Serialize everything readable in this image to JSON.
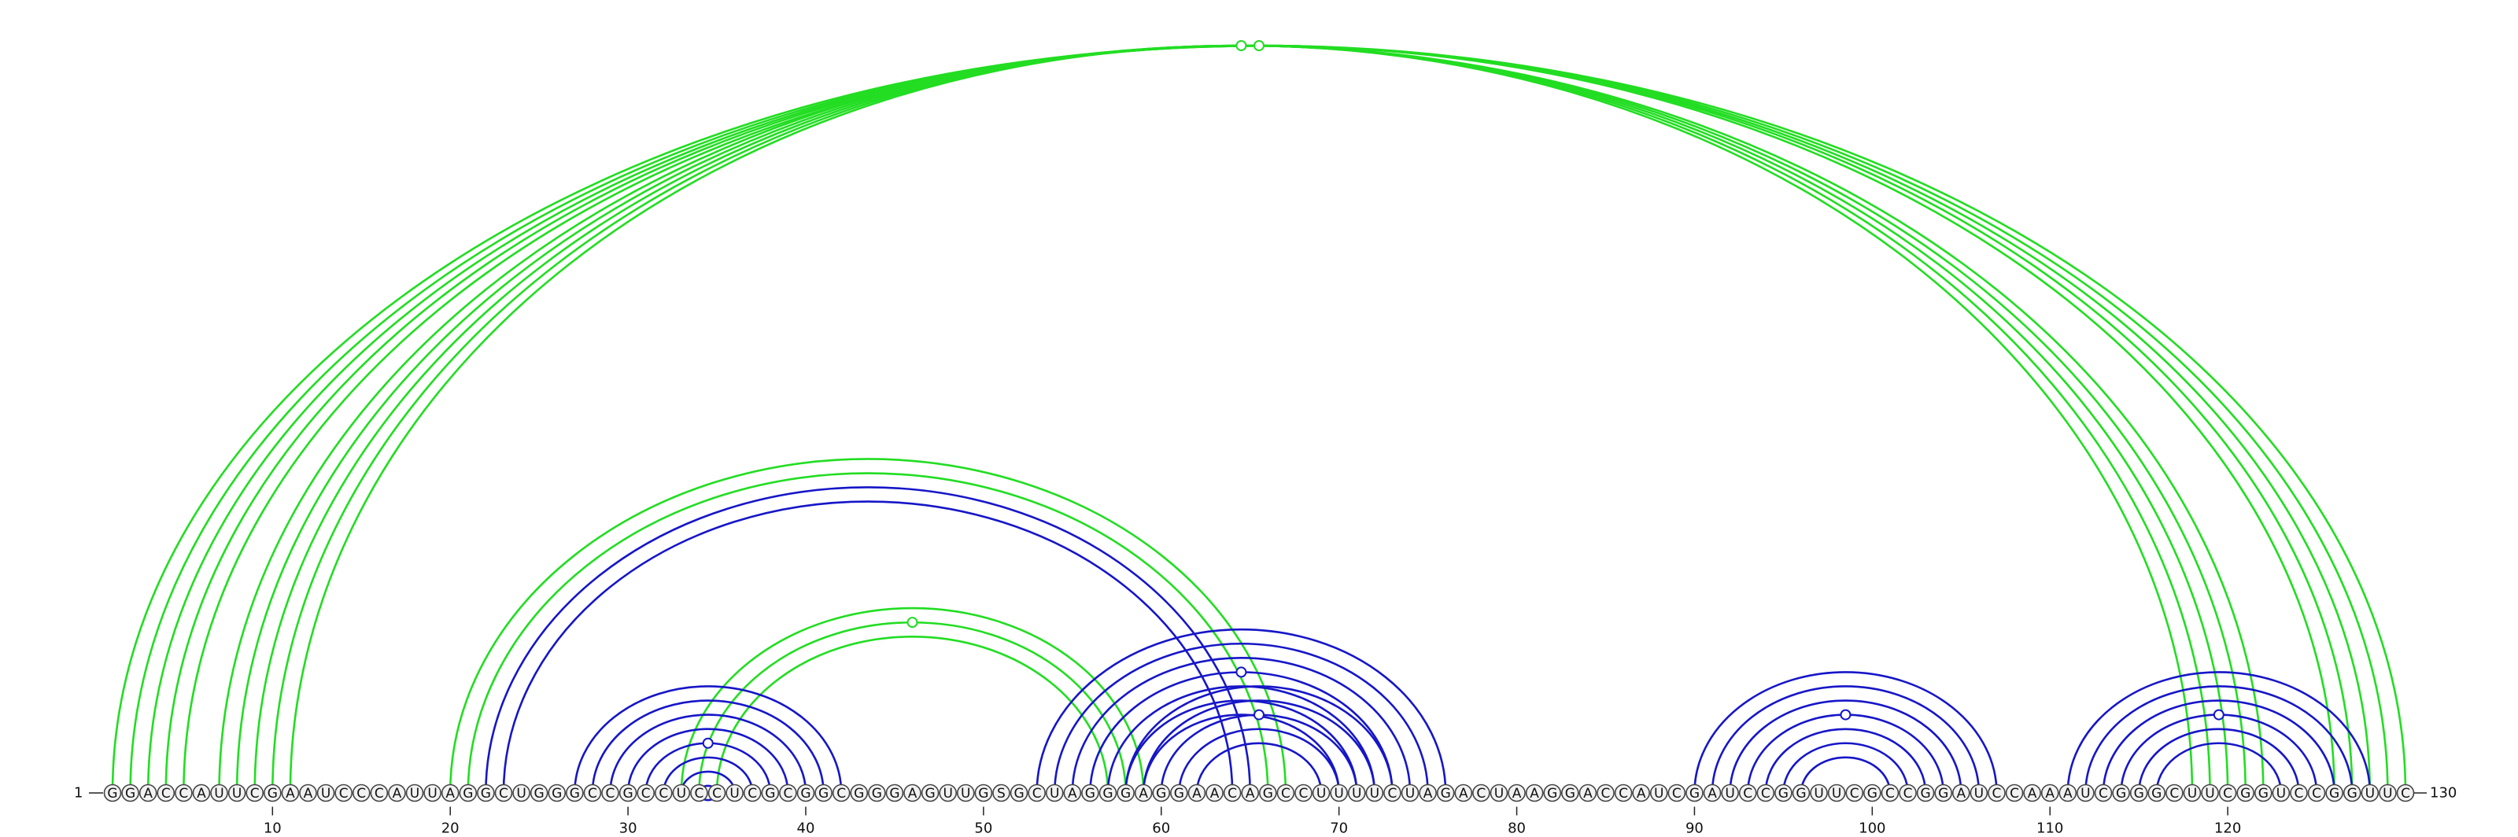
{
  "sequence": "GGACCAUUCGAAUCCCAUUAGGCUGGGCCGCCUCCUCGCGGCGGGAGUUGSGCUAGGGAGGAACAGCCUUUUCUAGACUAAGGACCAUCGAUCCGGUUCGCCGGAUCCAAAUCGGGCUUCGGUCCGGUUC",
  "start_label": "1",
  "end_label": "130",
  "ticks": [
    "10",
    "20",
    "30",
    "40",
    "50",
    "60",
    "70",
    "80",
    "90",
    "100",
    "110",
    "120"
  ],
  "colors": {
    "green": "#22dd22",
    "blue": "#1616c8"
  },
  "arc_groups": [
    {
      "color": "green",
      "helices": [
        {
          "i": 1,
          "j": 130,
          "len": 5
        },
        {
          "i": 7,
          "j": 122,
          "len": 5
        }
      ]
    },
    {
      "color": "green",
      "helices": [
        {
          "i": 20,
          "j": 67,
          "len": 2
        },
        {
          "i": 33,
          "j": 59,
          "len": 3
        }
      ]
    },
    {
      "color": "blue",
      "helices": [
        {
          "i": 22,
          "j": 65,
          "len": 2
        },
        {
          "i": 27,
          "j": 42,
          "len": 9
        },
        {
          "i": 53,
          "j": 76,
          "len": 7
        },
        {
          "i": 58,
          "j": 73,
          "len": 5
        },
        {
          "i": 90,
          "j": 107,
          "len": 7
        },
        {
          "i": 111,
          "j": 128,
          "len": 6
        }
      ]
    }
  ]
}
